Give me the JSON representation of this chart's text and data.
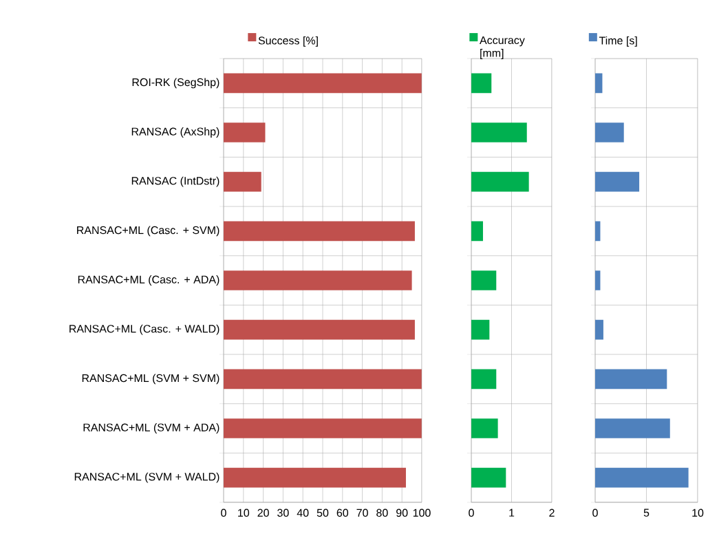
{
  "chart_data": [
    {
      "type": "bar",
      "orientation": "horizontal",
      "categories": [
        "ROI-RK (SegShp)",
        "RANSAC (AxShp)",
        "RANSAC (IntDstr)",
        "RANSAC+ML (Casc. + SVM)",
        "RANSAC+ML (Casc. + ADA)",
        "RANSAC+ML (Casc. + WALD)",
        "RANSAC+ML (SVM + SVM)",
        "RANSAC+ML (SVM + ADA)",
        "RANSAC+ML (SVM + WALD)"
      ],
      "series": [
        {
          "name": "Success [%]",
          "color": "#c0504d",
          "values": [
            100,
            21,
            19,
            96.5,
            95,
            96.5,
            100,
            100,
            92
          ]
        }
      ],
      "xlim": [
        0,
        100
      ],
      "xticks": [
        0,
        10,
        20,
        30,
        40,
        50,
        60,
        70,
        80,
        90,
        100
      ],
      "grid": true,
      "legend": "top"
    },
    {
      "type": "bar",
      "orientation": "horizontal",
      "categories": [
        null,
        null,
        null,
        null,
        null,
        null,
        null,
        null,
        null
      ],
      "series": [
        {
          "name": "Accuracy [mm]",
          "color": "#00b050",
          "values": [
            0.5,
            1.38,
            1.43,
            0.29,
            0.62,
            0.45,
            0.62,
            0.66,
            0.86
          ]
        }
      ],
      "xlim": [
        0,
        2
      ],
      "xticks": [
        0,
        1,
        2
      ],
      "grid": true,
      "legend": "top",
      "tick_labels": "x"
    },
    {
      "type": "bar",
      "orientation": "horizontal",
      "categories": [
        null,
        null,
        null,
        null,
        null,
        null,
        null,
        null,
        null
      ],
      "series": [
        {
          "name": "Time [s]",
          "color": "#4f81bd",
          "values": [
            0.7,
            2.8,
            4.3,
            0.5,
            0.5,
            0.8,
            7.0,
            7.3,
            9.1
          ]
        }
      ],
      "xlim": [
        0,
        10
      ],
      "xticks": [
        0,
        5,
        10
      ],
      "grid": true,
      "legend": "top",
      "tick_labels": "x"
    }
  ]
}
